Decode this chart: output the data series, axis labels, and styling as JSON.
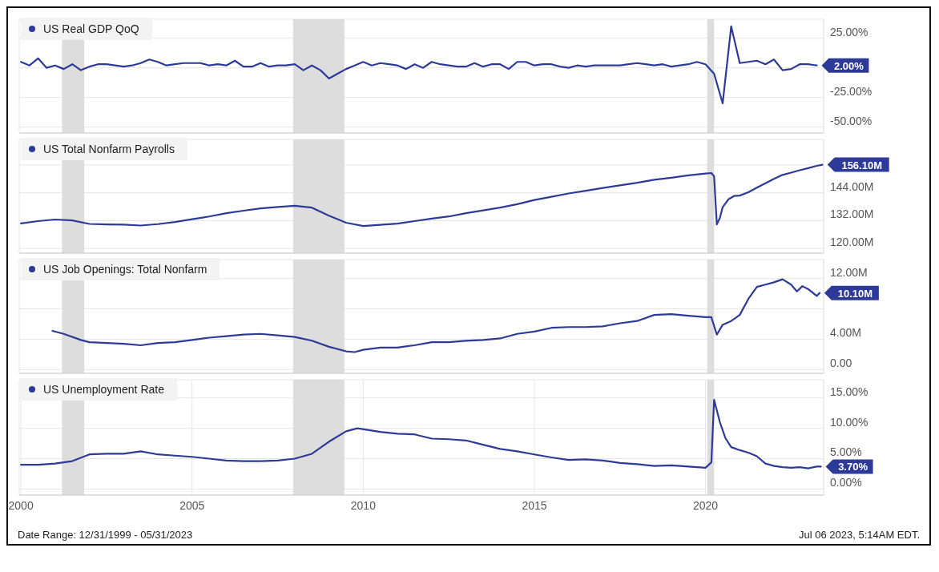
{
  "chart_data": [
    {
      "type": "line",
      "x": [
        2000.0,
        2000.25,
        2000.5,
        2000.75,
        2001.0,
        2001.25,
        2001.5,
        2001.75,
        2002.0,
        2002.25,
        2002.5,
        2002.75,
        2003.0,
        2003.25,
        2003.5,
        2003.75,
        2004.0,
        2004.25,
        2004.5,
        2004.75,
        2005.0,
        2005.25,
        2005.5,
        2005.75,
        2006.0,
        2006.25,
        2006.5,
        2006.75,
        2007.0,
        2007.25,
        2007.5,
        2007.75,
        2008.0,
        2008.25,
        2008.5,
        2008.75,
        2009.0,
        2009.25,
        2009.5,
        2009.75,
        2010.0,
        2010.25,
        2010.5,
        2010.75,
        2011.0,
        2011.25,
        2011.5,
        2011.75,
        2012.0,
        2012.25,
        2012.5,
        2012.75,
        2013.0,
        2013.25,
        2013.5,
        2013.75,
        2014.0,
        2014.25,
        2014.5,
        2014.75,
        2015.0,
        2015.25,
        2015.5,
        2015.75,
        2016.0,
        2016.25,
        2016.5,
        2016.75,
        2017.0,
        2017.25,
        2017.5,
        2017.75,
        2018.0,
        2018.25,
        2018.5,
        2018.75,
        2019.0,
        2019.25,
        2019.5,
        2019.75,
        2020.0,
        2020.25,
        2020.5,
        2020.75,
        2021.0,
        2021.25,
        2021.5,
        2021.75,
        2022.0,
        2022.25,
        2022.5,
        2022.75,
        2023.0,
        2023.25
      ],
      "series": [
        {
          "name": "US Real GDP QoQ",
          "color": "#2e3a98",
          "values": [
            5,
            2,
            8,
            0,
            2,
            -1,
            3,
            -2,
            1,
            3,
            3,
            2,
            1,
            2,
            4,
            7,
            5,
            2,
            3,
            4,
            4,
            4,
            2,
            3,
            2,
            6,
            1,
            1,
            4,
            1,
            2,
            2,
            3,
            -2,
            2,
            -2,
            -9,
            -5,
            -1,
            2,
            5,
            2,
            4,
            3,
            2,
            -1,
            3,
            0,
            5,
            3,
            2,
            1,
            1,
            4,
            1,
            3,
            3,
            -1,
            5,
            5,
            2,
            3,
            3,
            1,
            0,
            2,
            1,
            2,
            2,
            2,
            2,
            3,
            4,
            3,
            2,
            3,
            1,
            2,
            3,
            5,
            3,
            -5,
            -30,
            35,
            4,
            5,
            6,
            3,
            7,
            -2,
            -1,
            3,
            3,
            2
          ],
          "value_labels": [
            null,
            null,
            null,
            null,
            null,
            null,
            null,
            null,
            null,
            null,
            null,
            null,
            null,
            null,
            null,
            null,
            null,
            null,
            null,
            null,
            null,
            null,
            null,
            null,
            null,
            null,
            null,
            null,
            null,
            null,
            null,
            null,
            null,
            null,
            null,
            null,
            null,
            null,
            null,
            null,
            null,
            null,
            null,
            null,
            null,
            null,
            null,
            null,
            null,
            null,
            null,
            null,
            null,
            null,
            null,
            null,
            null,
            null,
            null,
            null,
            null,
            null,
            null,
            null,
            null,
            null,
            null,
            null,
            null,
            null,
            null,
            null,
            null,
            null,
            null,
            null,
            null,
            null,
            null,
            null,
            null,
            null,
            null,
            null,
            null,
            null,
            null,
            null,
            null,
            null,
            null,
            null,
            null,
            "2.00%"
          ]
        }
      ],
      "xlim": [
        1999.95,
        2023.45
      ],
      "xticks": [
        2000,
        2005,
        2010,
        2015,
        2020
      ],
      "ylim": [
        -55,
        41
      ],
      "yticks": [
        {
          "value": -50,
          "label": "-50.00%"
        },
        {
          "value": -25,
          "label": "-25.00%"
        },
        {
          "value": 0,
          "label": null
        },
        {
          "value": 25,
          "label": "25.00%"
        }
      ],
      "bands": [
        {
          "axis": "x",
          "from": 2001.2,
          "to": 2001.85,
          "color": "#dddddd"
        },
        {
          "axis": "x",
          "from": 2007.95,
          "to": 2009.45,
          "color": "#dddddd"
        },
        {
          "axis": "x",
          "from": 2020.05,
          "to": 2020.25,
          "color": "#dddddd"
        }
      ],
      "grid": true,
      "legend": "top left",
      "marker": "none",
      "line_style": "solid",
      "tick_labels": "y"
    },
    {
      "type": "line",
      "x": [
        2000.0,
        2000.5,
        2001.0,
        2001.5,
        2002.0,
        2002.5,
        2003.0,
        2003.5,
        2004.0,
        2004.5,
        2005.0,
        2005.5,
        2006.0,
        2006.5,
        2007.0,
        2007.5,
        2008.0,
        2008.5,
        2009.0,
        2009.5,
        2010.0,
        2010.5,
        2011.0,
        2011.5,
        2012.0,
        2012.5,
        2013.0,
        2013.5,
        2014.0,
        2014.5,
        2015.0,
        2015.5,
        2016.0,
        2016.5,
        2017.0,
        2017.5,
        2018.0,
        2018.5,
        2019.0,
        2019.5,
        2020.0,
        2020.17,
        2020.25,
        2020.33,
        2020.42,
        2020.5,
        2020.67,
        2020.83,
        2021.0,
        2021.25,
        2021.5,
        2021.75,
        2022.0,
        2022.25,
        2022.5,
        2022.75,
        2023.0,
        2023.25,
        2023.42
      ],
      "series": [
        {
          "name": "US Total Nonfarm Payrolls",
          "color": "#2e3a98",
          "values": [
            130.8,
            131.8,
            132.5,
            132.1,
            130.6,
            130.4,
            130.3,
            129.9,
            130.5,
            131.4,
            132.6,
            133.8,
            135.2,
            136.3,
            137.3,
            137.9,
            138.4,
            137.6,
            134.1,
            131.1,
            129.7,
            130.2,
            130.7,
            131.8,
            132.9,
            133.8,
            135.2,
            136.4,
            137.6,
            139.1,
            140.9,
            142.3,
            143.7,
            144.9,
            146.1,
            147.2,
            148.3,
            149.6,
            150.5,
            151.5,
            152.3,
            152.5,
            151.1,
            130.4,
            133.2,
            137.8,
            141.2,
            142.6,
            142.8,
            144.2,
            146.2,
            148.1,
            150.0,
            151.7,
            152.7,
            153.7,
            154.6,
            155.6,
            156.1
          ],
          "value_labels": [
            null,
            null,
            null,
            null,
            null,
            null,
            null,
            null,
            null,
            null,
            null,
            null,
            null,
            null,
            null,
            null,
            null,
            null,
            null,
            null,
            null,
            null,
            null,
            null,
            null,
            null,
            null,
            null,
            null,
            null,
            null,
            null,
            null,
            null,
            null,
            null,
            null,
            null,
            null,
            null,
            null,
            null,
            null,
            null,
            null,
            null,
            null,
            null,
            null,
            null,
            null,
            null,
            null,
            null,
            null,
            null,
            null,
            null,
            "156.10M"
          ]
        }
      ],
      "xlim": [
        1999.95,
        2023.45
      ],
      "xticks": [
        2000,
        2005,
        2010,
        2015,
        2020
      ],
      "ylim": [
        118,
        167
      ],
      "yticks": [
        {
          "value": 120,
          "label": "120.00M"
        },
        {
          "value": 132,
          "label": "132.00M"
        },
        {
          "value": 144,
          "label": "144.00M"
        },
        {
          "value": 156,
          "label": null
        }
      ],
      "bands": [
        {
          "axis": "x",
          "from": 2001.2,
          "to": 2001.85,
          "color": "#dddddd"
        },
        {
          "axis": "x",
          "from": 2007.95,
          "to": 2009.45,
          "color": "#dddddd"
        },
        {
          "axis": "x",
          "from": 2020.05,
          "to": 2020.25,
          "color": "#dddddd"
        }
      ],
      "grid": true,
      "legend": "top left",
      "marker": "none",
      "line_style": "solid",
      "tick_labels": "y"
    },
    {
      "type": "line",
      "x": [
        2000.92,
        2001.25,
        2001.75,
        2002.0,
        2002.5,
        2003.0,
        2003.5,
        2004.0,
        2004.5,
        2005.0,
        2005.5,
        2006.0,
        2006.5,
        2007.0,
        2007.5,
        2008.0,
        2008.5,
        2009.0,
        2009.5,
        2009.75,
        2010.0,
        2010.5,
        2011.0,
        2011.5,
        2012.0,
        2012.5,
        2013.0,
        2013.5,
        2014.0,
        2014.5,
        2015.0,
        2015.5,
        2016.0,
        2016.5,
        2017.0,
        2017.5,
        2018.0,
        2018.5,
        2019.0,
        2019.5,
        2020.0,
        2020.17,
        2020.33,
        2020.5,
        2020.75,
        2021.0,
        2021.25,
        2021.5,
        2021.75,
        2022.0,
        2022.25,
        2022.5,
        2022.67,
        2022.83,
        2023.0,
        2023.25,
        2023.33
      ],
      "series": [
        {
          "name": "US Job Openings: Total Nonfarm",
          "color": "#2e3a98",
          "values": [
            5.1,
            4.7,
            3.9,
            3.6,
            3.5,
            3.4,
            3.2,
            3.5,
            3.6,
            3.9,
            4.2,
            4.4,
            4.6,
            4.7,
            4.5,
            4.3,
            3.8,
            3.0,
            2.4,
            2.3,
            2.6,
            2.9,
            2.9,
            3.2,
            3.6,
            3.6,
            3.8,
            3.9,
            4.1,
            4.7,
            5.0,
            5.5,
            5.6,
            5.6,
            5.7,
            6.1,
            6.4,
            7.2,
            7.3,
            7.1,
            6.9,
            6.9,
            4.6,
            5.9,
            6.4,
            7.2,
            9.3,
            10.9,
            11.2,
            11.5,
            11.9,
            11.2,
            10.3,
            11.0,
            10.6,
            9.7,
            10.1
          ],
          "value_labels": [
            null,
            null,
            null,
            null,
            null,
            null,
            null,
            null,
            null,
            null,
            null,
            null,
            null,
            null,
            null,
            null,
            null,
            null,
            null,
            null,
            null,
            null,
            null,
            null,
            null,
            null,
            null,
            null,
            null,
            null,
            null,
            null,
            null,
            null,
            null,
            null,
            null,
            null,
            null,
            null,
            null,
            null,
            null,
            null,
            null,
            null,
            null,
            null,
            null,
            null,
            null,
            null,
            null,
            null,
            null,
            null,
            "10.10M"
          ]
        }
      ],
      "xlim": [
        1999.95,
        2023.45
      ],
      "xticks": [
        2000,
        2005,
        2010,
        2015,
        2020
      ],
      "ylim": [
        -0.5,
        14.5
      ],
      "yticks": [
        {
          "value": 0,
          "label": "0.00"
        },
        {
          "value": 4,
          "label": "4.00M"
        },
        {
          "value": 8,
          "label": null
        },
        {
          "value": 12,
          "label": "12.00M"
        }
      ],
      "bands": [
        {
          "axis": "x",
          "from": 2001.2,
          "to": 2001.85,
          "color": "#dddddd"
        },
        {
          "axis": "x",
          "from": 2007.95,
          "to": 2009.45,
          "color": "#dddddd"
        },
        {
          "axis": "x",
          "from": 2020.05,
          "to": 2020.25,
          "color": "#dddddd"
        }
      ],
      "grid": true,
      "legend": "top left",
      "marker": "none",
      "line_style": "solid",
      "tick_labels": "y"
    },
    {
      "type": "line",
      "x": [
        2000.0,
        2000.5,
        2001.0,
        2001.5,
        2002.0,
        2002.5,
        2003.0,
        2003.5,
        2004.0,
        2004.5,
        2005.0,
        2005.5,
        2006.0,
        2006.5,
        2007.0,
        2007.5,
        2008.0,
        2008.5,
        2009.0,
        2009.5,
        2009.83,
        2010.5,
        2011.0,
        2011.5,
        2012.0,
        2012.5,
        2013.0,
        2013.5,
        2014.0,
        2014.5,
        2015.0,
        2015.5,
        2016.0,
        2016.5,
        2017.0,
        2017.5,
        2018.0,
        2018.5,
        2019.0,
        2019.5,
        2020.0,
        2020.17,
        2020.25,
        2020.42,
        2020.58,
        2020.75,
        2021.0,
        2021.25,
        2021.5,
        2021.75,
        2022.0,
        2022.25,
        2022.5,
        2022.75,
        2023.0,
        2023.25,
        2023.37
      ],
      "series": [
        {
          "name": "US Unemployment Rate",
          "color": "#2e3a98",
          "values": [
            4.0,
            4.0,
            4.2,
            4.6,
            5.7,
            5.8,
            5.8,
            6.2,
            5.7,
            5.5,
            5.3,
            5.0,
            4.7,
            4.6,
            4.6,
            4.7,
            5.0,
            5.8,
            7.8,
            9.5,
            10.0,
            9.4,
            9.1,
            9.0,
            8.3,
            8.2,
            8.0,
            7.3,
            6.6,
            6.2,
            5.7,
            5.2,
            4.8,
            4.9,
            4.7,
            4.3,
            4.1,
            3.8,
            3.9,
            3.7,
            3.5,
            4.4,
            14.7,
            11.0,
            8.4,
            6.9,
            6.4,
            6.0,
            5.4,
            4.2,
            3.8,
            3.6,
            3.5,
            3.6,
            3.4,
            3.7,
            3.7
          ],
          "value_labels": [
            null,
            null,
            null,
            null,
            null,
            null,
            null,
            null,
            null,
            null,
            null,
            null,
            null,
            null,
            null,
            null,
            null,
            null,
            null,
            null,
            null,
            null,
            null,
            null,
            null,
            null,
            null,
            null,
            null,
            null,
            null,
            null,
            null,
            null,
            null,
            null,
            null,
            null,
            null,
            null,
            null,
            null,
            null,
            null,
            null,
            null,
            null,
            null,
            null,
            null,
            null,
            null,
            null,
            null,
            null,
            null,
            "3.70%"
          ]
        }
      ],
      "xlim": [
        1999.95,
        2023.45
      ],
      "xticks": [
        2000,
        2005,
        2010,
        2015,
        2020
      ],
      "ylim": [
        -1,
        18
      ],
      "yticks": [
        {
          "value": 0,
          "label": "0.00%"
        },
        {
          "value": 5,
          "label": "5.00%"
        },
        {
          "value": 10,
          "label": "10.00%"
        },
        {
          "value": 15,
          "label": "15.00%"
        }
      ],
      "bands": [
        {
          "axis": "x",
          "from": 2001.2,
          "to": 2001.85,
          "color": "#dddddd"
        },
        {
          "axis": "x",
          "from": 2007.95,
          "to": 2009.45,
          "color": "#dddddd"
        },
        {
          "axis": "x",
          "from": 2020.05,
          "to": 2020.25,
          "color": "#dddddd"
        }
      ],
      "grid": true,
      "legend": "top left",
      "marker": "none",
      "line_style": "solid",
      "annotations": [
        "Date Range: 12/31/1999 - 05/31/2023",
        "Jul 06 2023, 5:14AM EDT."
      ]
    }
  ]
}
